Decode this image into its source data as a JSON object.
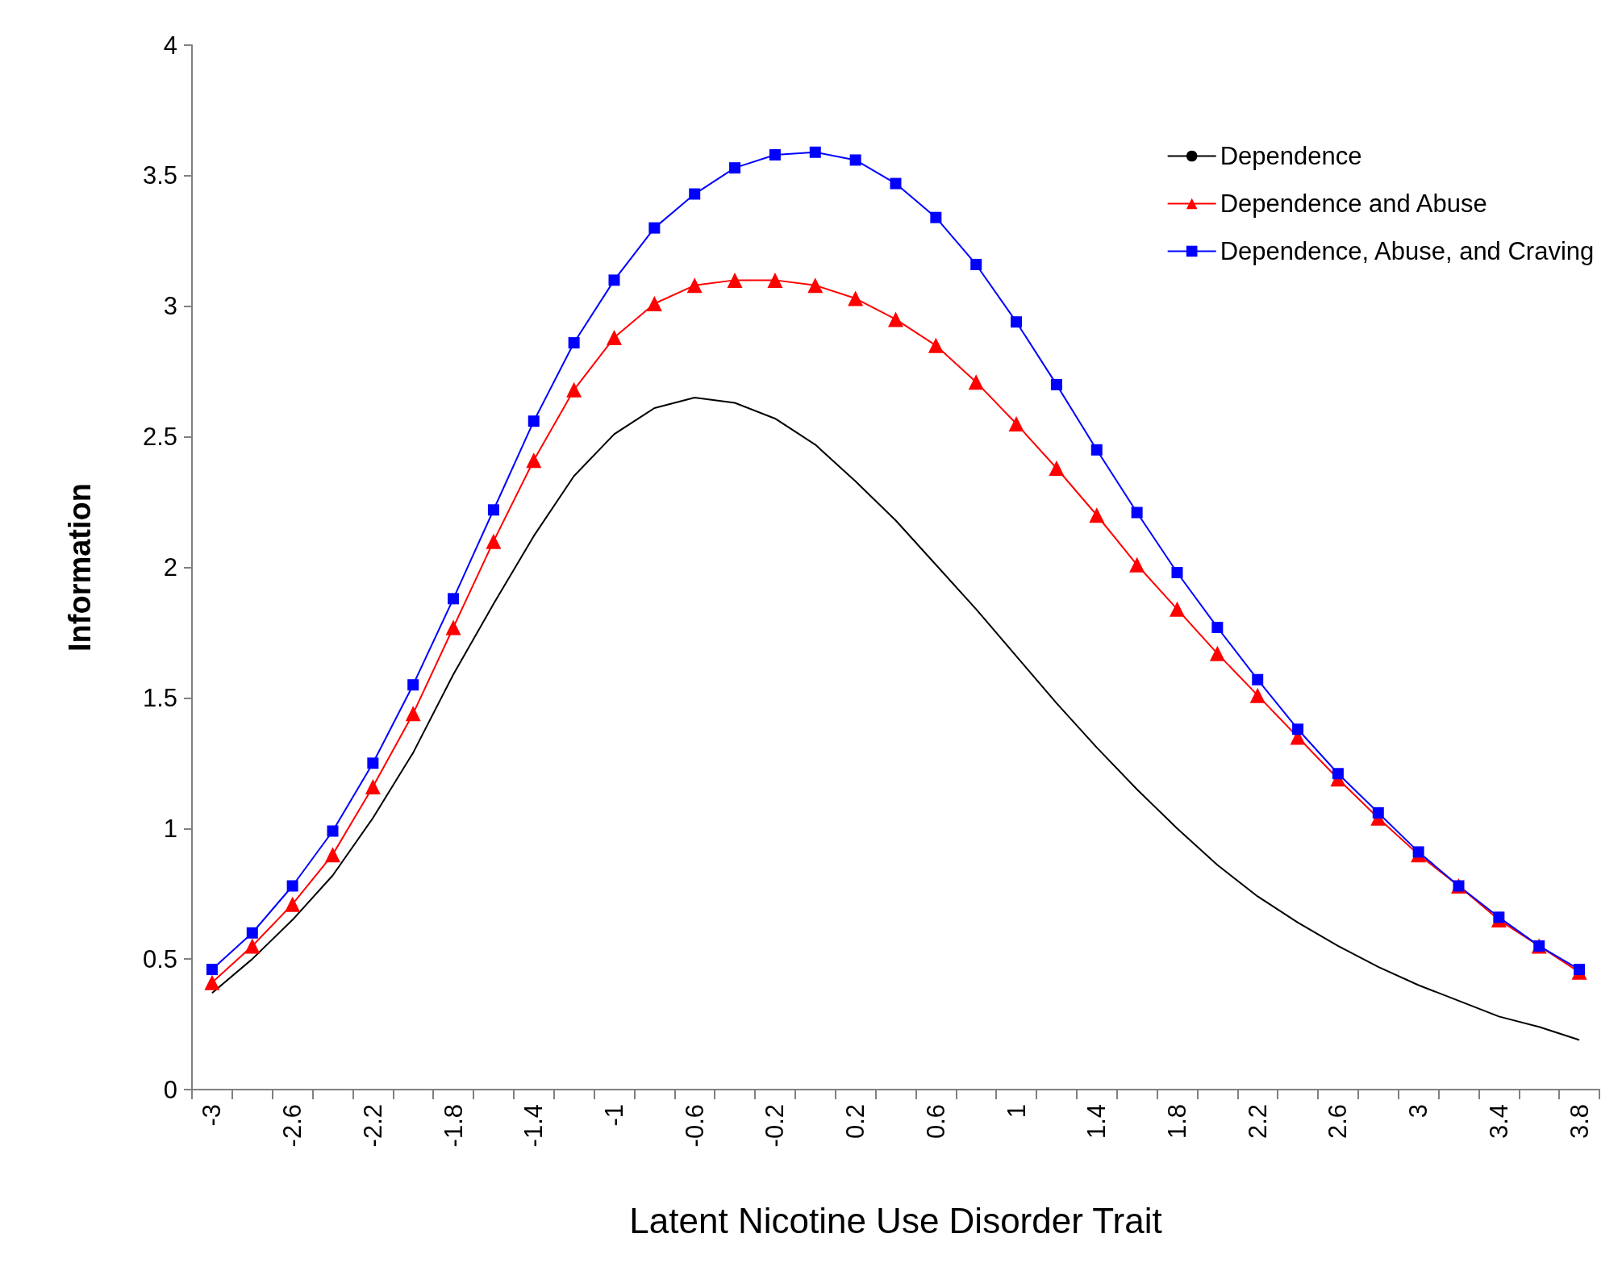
{
  "chart_data": {
    "type": "line",
    "xlabel": "Latent Nicotine Use Disorder Trait",
    "ylabel": "Information",
    "categories": [
      "-3",
      null,
      "-2.6",
      null,
      "-2.2",
      null,
      "-1.8",
      null,
      "-1.4",
      null,
      "-1",
      null,
      "-0.6",
      null,
      "-0.2",
      null,
      "0.2",
      null,
      "0.6",
      null,
      "1",
      null,
      "1.4",
      null,
      "1.8",
      null,
      "2.2",
      null,
      "2.6",
      null,
      "3",
      null,
      "3.4",
      null,
      "3.8"
    ],
    "series": [
      {
        "name": "Dependence",
        "color": "#000000",
        "marker": "none",
        "values": [
          0.37,
          0.5,
          0.65,
          0.82,
          1.04,
          1.29,
          1.59,
          1.86,
          2.12,
          2.35,
          2.51,
          2.61,
          2.65,
          2.63,
          2.57,
          2.47,
          2.33,
          2.18,
          2.01,
          1.84,
          1.66,
          1.48,
          1.31,
          1.15,
          1.0,
          0.86,
          0.74,
          0.64,
          0.55,
          0.47,
          0.4,
          0.34,
          0.28,
          0.24,
          0.19
        ]
      },
      {
        "name": "Dependence and Abuse",
        "color": "#ff0000",
        "marker": "triangle",
        "values": [
          0.41,
          0.55,
          0.71,
          0.9,
          1.16,
          1.44,
          1.77,
          2.1,
          2.41,
          2.68,
          2.88,
          3.01,
          3.08,
          3.1,
          3.1,
          3.08,
          3.03,
          2.95,
          2.85,
          2.71,
          2.55,
          2.38,
          2.2,
          2.01,
          1.84,
          1.67,
          1.51,
          1.35,
          1.19,
          1.04,
          0.9,
          0.78,
          0.65,
          0.55,
          0.45
        ]
      },
      {
        "name": "Dependence, Abuse, and Craving",
        "color": "#0000ff",
        "marker": "square",
        "values": [
          0.46,
          0.6,
          0.78,
          0.99,
          1.25,
          1.55,
          1.88,
          2.22,
          2.56,
          2.86,
          3.1,
          3.3,
          3.43,
          3.53,
          3.58,
          3.59,
          3.56,
          3.47,
          3.34,
          3.16,
          2.94,
          2.7,
          2.45,
          2.21,
          1.98,
          1.77,
          1.57,
          1.38,
          1.21,
          1.06,
          0.91,
          0.78,
          0.66,
          0.55,
          0.46
        ]
      }
    ],
    "ylim": [
      0,
      4
    ],
    "yticks": [
      0,
      0.5,
      1,
      1.5,
      2,
      2.5,
      3,
      3.5,
      4
    ],
    "grid": false,
    "legend": "top right"
  }
}
